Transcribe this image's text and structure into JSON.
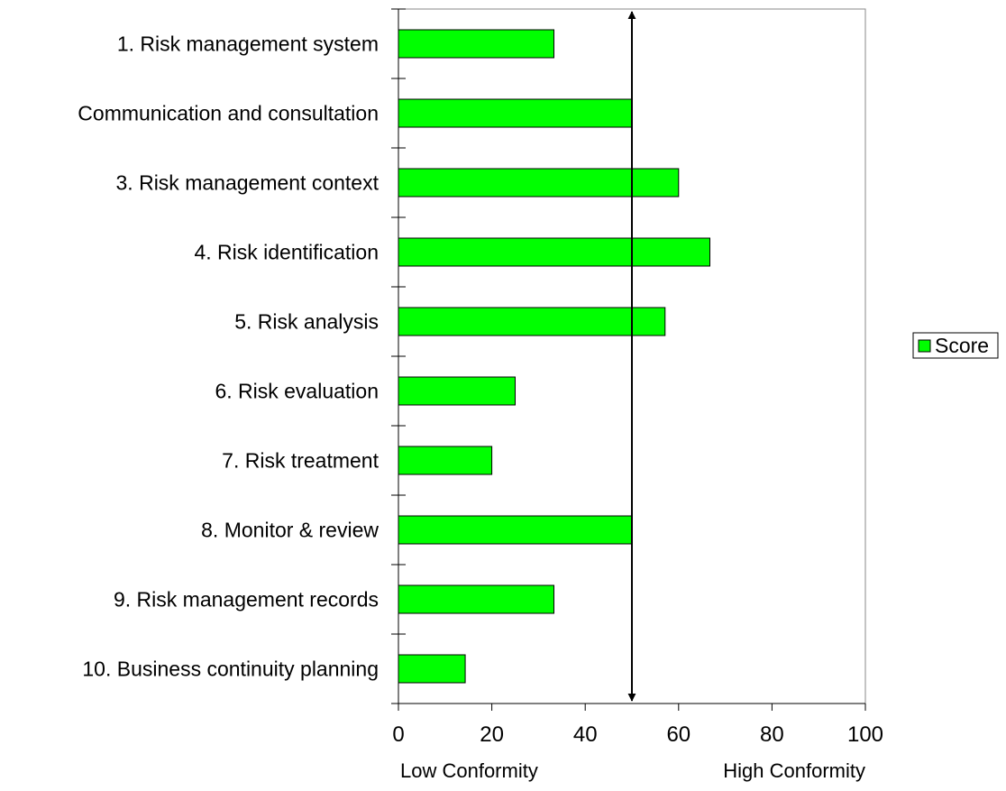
{
  "chart_data": {
    "type": "bar",
    "orientation": "horizontal",
    "categories": [
      "1. Risk management system",
      "Communication and consultation",
      "3. Risk management context",
      "4. Risk identification",
      "5. Risk analysis",
      "6. Risk evaluation",
      "7. Risk treatment",
      "8. Monitor & review",
      "9. Risk management records",
      "10. Business continuity planning"
    ],
    "series": [
      {
        "name": "Score",
        "color": "#00ff00",
        "values": [
          33.3,
          50,
          60,
          66.7,
          57.1,
          25,
          20,
          50,
          33.3,
          14.3
        ]
      }
    ],
    "xlim": [
      0,
      100
    ],
    "x_ticks": [
      0,
      20,
      40,
      60,
      80,
      100
    ],
    "x_tick_labels": [
      "0",
      "20",
      "40",
      "60",
      "80",
      "100"
    ],
    "axis_notes": {
      "low": "Low Conformity",
      "high": "High Conformity"
    },
    "reference_line": {
      "x": 50,
      "style": "double-arrow"
    },
    "grid": false,
    "legend": {
      "position": "right",
      "entries": [
        "Score"
      ]
    },
    "title": "",
    "xlabel": "",
    "ylabel": ""
  }
}
